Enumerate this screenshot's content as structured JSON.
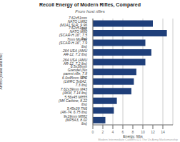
{
  "chart_data": {
    "type": "bar",
    "orientation": "horizontal",
    "title": "Recoil Energy of Modern Rifles, Compared",
    "subtitle": "From host rifles",
    "xlabel": "Energy, ftlbs",
    "ylabel": "Ammo (round and rifle)",
    "annotations": [
      "Modern Intermediate Calibers 021 The Us Army Marksmanship"
    ],
    "categories": [
      "9x19mm M882 (MP5A3, 8.02 lbs)",
      "5.45x39 7N6 (AK-74, 6.75 lbs)",
      "5.56x45 M855 (M4 Carbine, 8.22 lbs)",
      "7.62x39mm M43 (AKM, 7.14 lbs)",
      "6.0x45mm SPC (LWRC 5x6A2, 7.3 lbs)",
      "6.5x38mm Grendel (No parent rifle, 7.8 lbs)",
      ".264 USA (AMU AR-12, 7.2 lbs)",
      ".264 USA (AMU AR-12, 7.2 lbs)",
      "7mm Murray (SCAR-H 16\", 7.9 lbs)",
      "7.62x51mm NATO M80 (SCAR-H 16\", 7.5 lbs)",
      "7.62x51mm NATO LM82 (M1A1 SLR, 9.96 lbs)"
    ],
    "values": [
      2.5,
      4.2,
      4.8,
      7.7,
      8.2,
      8.7,
      10.5,
      11.7,
      10.5,
      14.8,
      12.0
    ],
    "color": "#1f3f7a",
    "xlim": [
      0,
      16
    ],
    "xticks": [
      0,
      2,
      4,
      6,
      8,
      10,
      12,
      14
    ],
    "grid": true
  }
}
